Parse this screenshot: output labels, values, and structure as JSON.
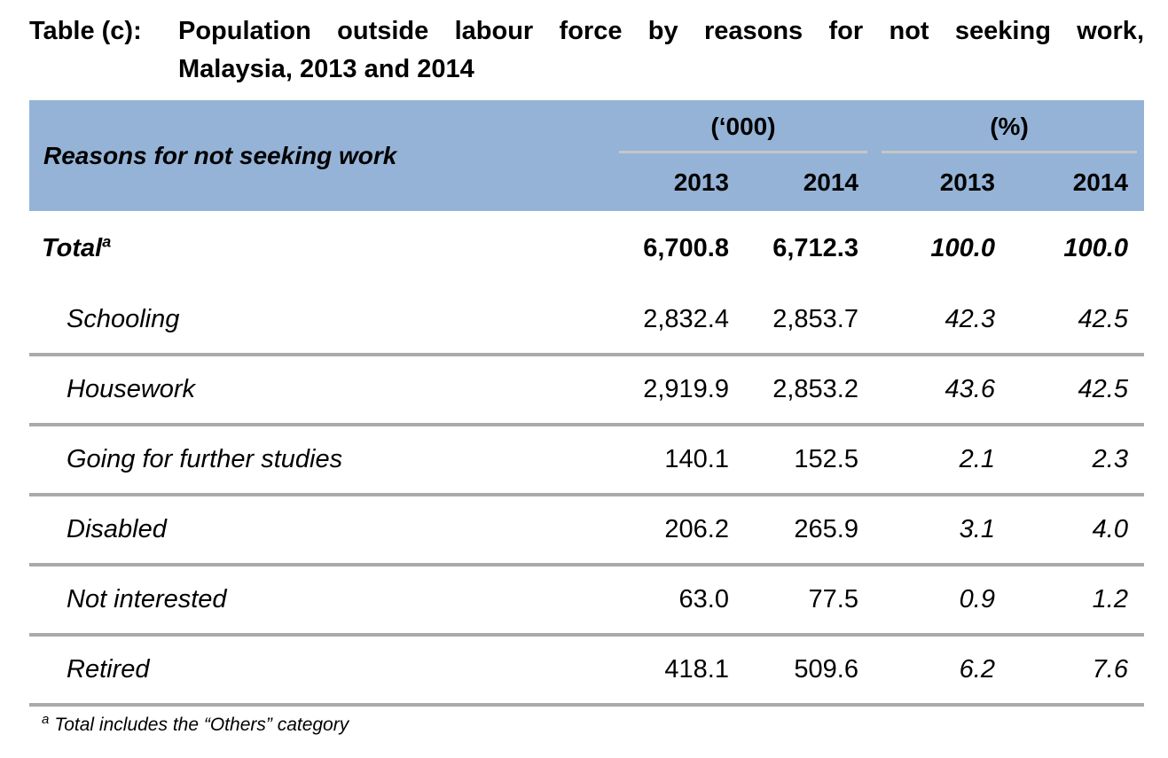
{
  "title": {
    "prefix": "Table (c):",
    "line1": "Population outside labour force by reasons for not seeking work,",
    "line2": "Malaysia, 2013 and 2014"
  },
  "table": {
    "header": {
      "reasons_label": "Reasons for not seeking work",
      "thousands_group": "(‘000)",
      "percent_group": "(%)",
      "year_cols": [
        "2013",
        "2014",
        "2013",
        "2014"
      ]
    },
    "rows": [
      {
        "label": "Total",
        "sup": "a",
        "values": [
          "6,700.8",
          "6,712.3",
          "100.0",
          "100.0"
        ]
      },
      {
        "label": "Schooling",
        "sup": "",
        "values": [
          "2,832.4",
          "2,853.7",
          "42.3",
          "42.5"
        ]
      },
      {
        "label": "Housework",
        "sup": "",
        "values": [
          "2,919.9",
          "2,853.2",
          "43.6",
          "42.5"
        ]
      },
      {
        "label": "Going for further studies",
        "sup": "",
        "values": [
          "140.1",
          "152.5",
          "2.1",
          "2.3"
        ]
      },
      {
        "label": "Disabled",
        "sup": "",
        "values": [
          "206.2",
          "265.9",
          "3.1",
          "4.0"
        ]
      },
      {
        "label": "Not interested",
        "sup": "",
        "values": [
          "63.0",
          "77.5",
          "0.9",
          "1.2"
        ]
      },
      {
        "label": "Retired",
        "sup": "",
        "values": [
          "418.1",
          "509.6",
          "6.2",
          "7.6"
        ]
      }
    ]
  },
  "footnote": {
    "marker": "a",
    "text": "Total includes the “Others” category"
  }
}
